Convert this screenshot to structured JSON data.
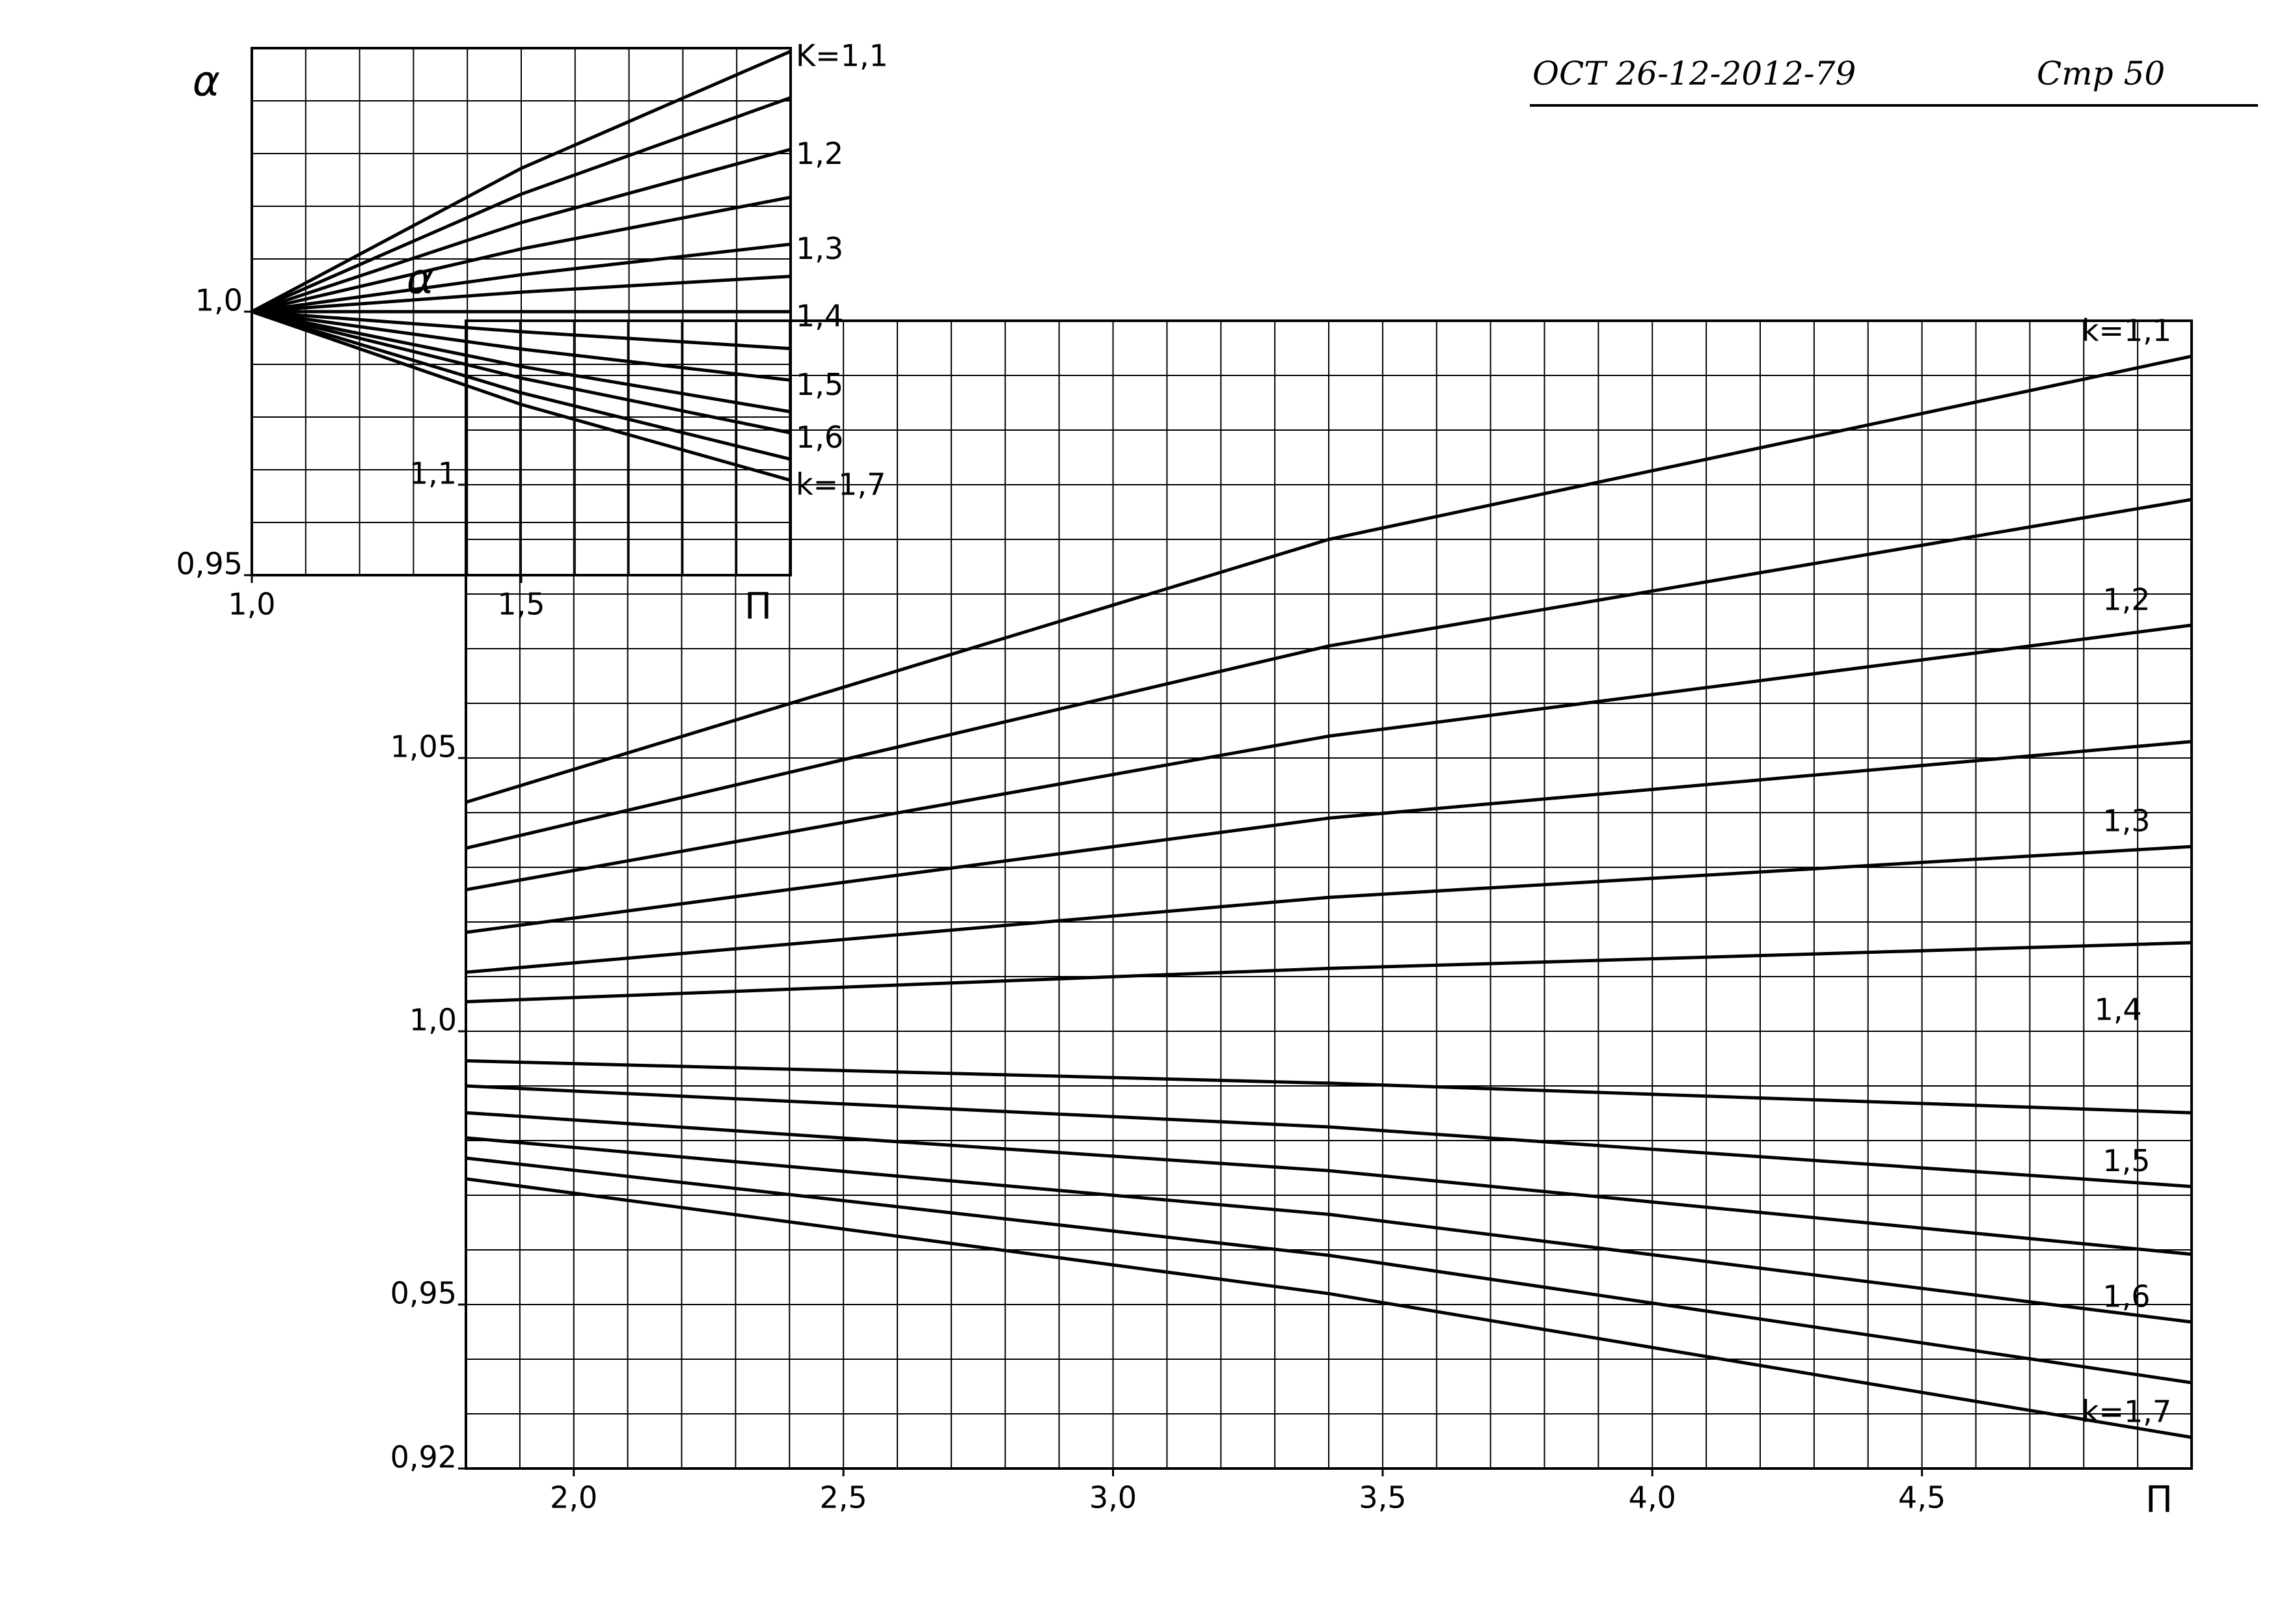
{
  "header": {
    "code": "ОСТ 26-12-2012-79",
    "page": "Стр 50"
  },
  "chart_data": [
    {
      "type": "line",
      "y_label": "α",
      "x_label": "П",
      "xlim": [
        1.0,
        2.0
      ],
      "ylim": [
        0.95,
        1.05
      ],
      "xticks": [
        {
          "value": 1.0,
          "label": "1,0"
        },
        {
          "value": 1.5,
          "label": "1,5"
        }
      ],
      "yticks": [
        {
          "value": 0.95,
          "label": "0,95"
        },
        {
          "value": 1.0,
          "label": "1,0"
        }
      ],
      "grid": true,
      "grid_step_x": 0.1,
      "grid_step_y": 0.01,
      "x": [
        1.0,
        1.5,
        2.0
      ],
      "series": [
        {
          "name": "K=1,1",
          "color": "#000000",
          "values": [
            1.0,
            1.0272,
            1.0494
          ]
        },
        {
          "color": "#000000",
          "values": [
            1.0,
            1.0223,
            1.0406
          ]
        },
        {
          "name": "1,2",
          "color": "#000000",
          "values": [
            1.0,
            1.0169,
            1.0308
          ]
        },
        {
          "color": "#000000",
          "values": [
            1.0,
            1.0119,
            1.0217
          ]
        },
        {
          "name": "1,3",
          "color": "#000000",
          "values": [
            1.0,
            1.007,
            1.0128
          ]
        },
        {
          "color": "#000000",
          "values": [
            1.0,
            1.0037,
            1.0067
          ]
        },
        {
          "name": "1,4",
          "color": "#000000",
          "values": [
            1.0,
            1.0,
            1.0
          ]
        },
        {
          "color": "#000000",
          "values": [
            1.0,
            0.9962,
            0.993
          ]
        },
        {
          "name": "1,5",
          "color": "#000000",
          "values": [
            1.0,
            0.9929,
            0.987
          ]
        },
        {
          "color": "#000000",
          "values": [
            1.0,
            0.9896,
            0.981
          ]
        },
        {
          "name": "1,6",
          "color": "#000000",
          "values": [
            1.0,
            0.9874,
            0.977
          ]
        },
        {
          "color": "#000000",
          "values": [
            1.0,
            0.9846,
            0.972
          ]
        },
        {
          "name": "k=1,7",
          "color": "#000000",
          "values": [
            1.0,
            0.9824,
            0.968
          ]
        }
      ]
    },
    {
      "type": "line",
      "y_label": "α",
      "x_label": "П",
      "xlim": [
        1.8,
        5.0
      ],
      "ylim": [
        0.92,
        1.13
      ],
      "xticks": [
        {
          "value": 2.0,
          "label": "2,0"
        },
        {
          "value": 2.5,
          "label": "2,5"
        },
        {
          "value": 3.0,
          "label": "3,0"
        },
        {
          "value": 3.5,
          "label": "3,5"
        },
        {
          "value": 4.0,
          "label": "4,0"
        },
        {
          "value": 4.5,
          "label": "4,5"
        }
      ],
      "yticks": [
        {
          "value": 0.92,
          "label": "0,92"
        },
        {
          "value": 0.95,
          "label": "0,95"
        },
        {
          "value": 1.0,
          "label": "1,0"
        },
        {
          "value": 1.05,
          "label": "1,05"
        },
        {
          "value": 1.1,
          "label": "1,1"
        }
      ],
      "grid": true,
      "grid_step_x": 0.1,
      "grid_step_y": 0.01,
      "x": [
        1.8,
        3.4,
        5.0
      ],
      "series": [
        {
          "name": "k=1,1",
          "color": "#000000",
          "values": [
            1.0419,
            1.09,
            1.1235
          ]
        },
        {
          "color": "#000000",
          "values": [
            1.0335,
            1.0705,
            1.0973
          ]
        },
        {
          "name": "1,2",
          "color": "#000000",
          "values": [
            1.0259,
            1.054,
            1.0743
          ]
        },
        {
          "color": "#000000",
          "values": [
            1.0181,
            1.039,
            1.053
          ]
        },
        {
          "name": "1,3",
          "color": "#000000",
          "values": [
            1.0108,
            1.0245,
            1.0338
          ]
        },
        {
          "color": "#000000",
          "values": [
            1.0054,
            1.0115,
            1.0162
          ]
        },
        {
          "color": "#000000",
          "values": [
            0.9946,
            0.9905,
            0.9851
          ]
        },
        {
          "name": "1,5",
          "color": "#000000",
          "values": [
            0.99,
            0.9825,
            0.9716
          ]
        },
        {
          "color": "#000000",
          "values": [
            0.9851,
            0.9745,
            0.9592
          ]
        },
        {
          "name": "1,6",
          "color": "#000000",
          "values": [
            0.9805,
            0.9665,
            0.9468
          ]
        },
        {
          "color": "#000000",
          "values": [
            0.9768,
            0.959,
            0.9357
          ]
        },
        {
          "name": "k=1,7",
          "color": "#000000",
          "values": [
            0.973,
            0.952,
            0.9257
          ]
        }
      ],
      "annotations": [
        {
          "text": "1,4",
          "x": 4.9,
          "y": 1.0
        }
      ]
    }
  ]
}
